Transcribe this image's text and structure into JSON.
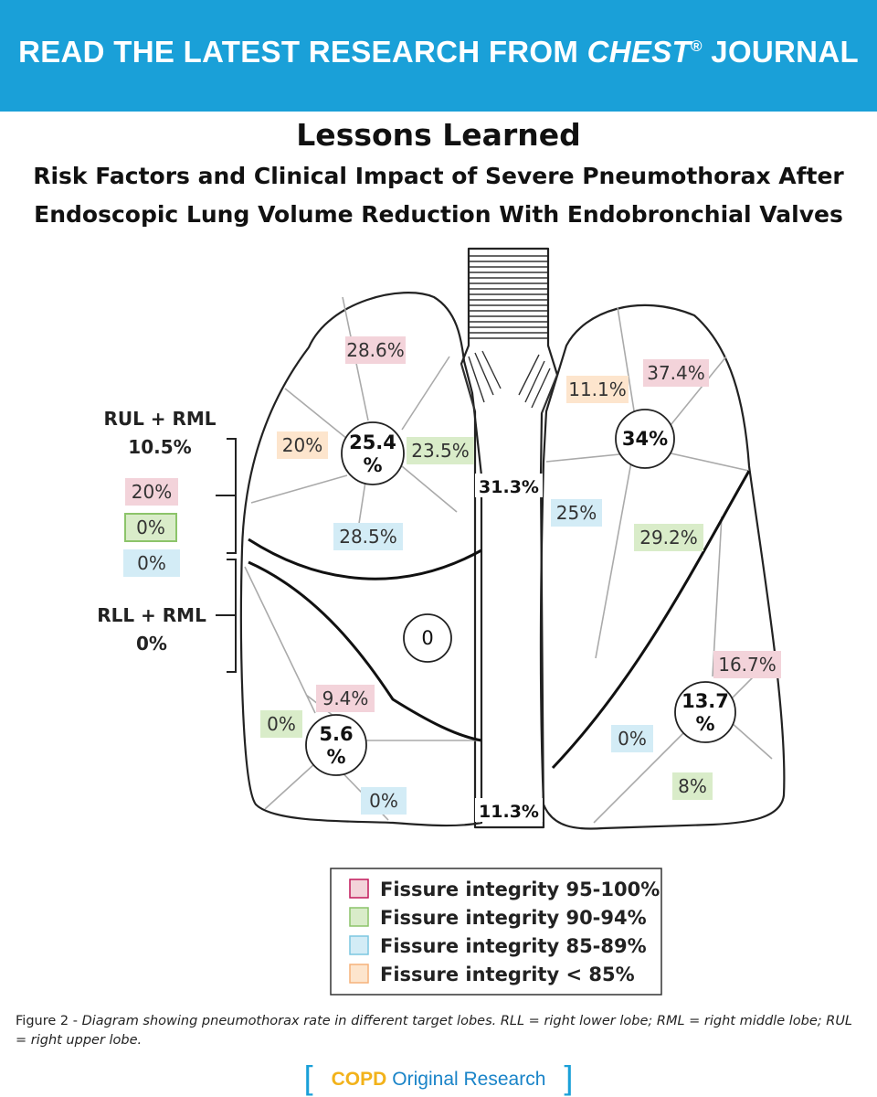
{
  "banner": {
    "prefix": "READ THE LATEST RESEARCH FROM ",
    "journal": "CHEST",
    "mark": "®",
    "suffix": " JOURNAL"
  },
  "title": "Lessons Learned",
  "subtitle_line1": "Risk Factors and Clinical Impact of Severe Pneumothorax After",
  "subtitle_line2": "Endoscopic Lung Volume Reduction With Endobronchial Valves",
  "colors": {
    "banner": "#1aa0d8",
    "pink": "#f3d3da",
    "green": "#d9ecc9",
    "blue": "#d3ecf6",
    "orange": "#fde5cd"
  },
  "right_lung": {
    "upper_total": "25.4 %",
    "upper_segments": [
      "28.6%",
      "20%",
      "23.5%",
      "28.5%"
    ],
    "middle_total": "0",
    "lower_total": "5.6 %",
    "lower_segments": [
      "9.4%",
      "0%",
      "0%"
    ]
  },
  "left_lung": {
    "upper_total": "34%",
    "upper_segments": [
      "11.1%",
      "37.4%",
      "25%",
      "29.2%"
    ],
    "lower_total": "13.7 %",
    "lower_segments": [
      "16.7%",
      "0%",
      "8%"
    ]
  },
  "trachea": {
    "upper_value": "31.3%",
    "lower_value": "11.3%"
  },
  "combos": {
    "rul_rml_label": "RUL + RML",
    "rul_rml_value": "10.5%",
    "middle_values": [
      "20%",
      "0%",
      "0%"
    ],
    "rll_rml_label": "RLL + RML",
    "rll_rml_value": "0%"
  },
  "legend": [
    {
      "label": "Fissure integrity 95-100%",
      "color": "pink"
    },
    {
      "label": "Fissure integrity 90-94%",
      "color": "green"
    },
    {
      "label": "Fissure integrity 85-89%",
      "color": "blue"
    },
    {
      "label": "Fissure integrity < 85%",
      "color": "orange"
    }
  ],
  "caption": {
    "prefix": "Figure 2 - ",
    "text": "Diagram showing pneumothorax rate in different target lobes. RLL = right lower lobe; RML = right middle lobe; RUL = right upper lobe."
  },
  "footer": {
    "open": "[",
    "topic": "COPD",
    "type": "Original Research",
    "close": "]"
  }
}
